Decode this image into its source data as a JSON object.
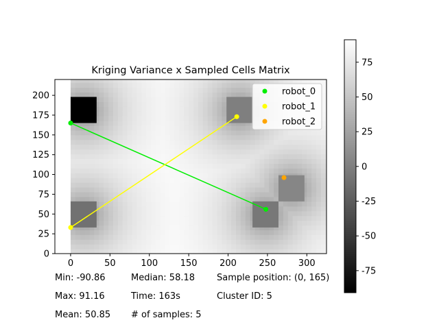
{
  "chart_data": {
    "type": "heatmap",
    "title": "Kriging Variance x Sampled Cells Matrix",
    "xlabel": "",
    "ylabel": "",
    "xlim": [
      -20,
      325
    ],
    "ylim": [
      0,
      220
    ],
    "x_ticks": [
      0,
      50,
      100,
      150,
      200,
      250,
      300
    ],
    "y_ticks": [
      0,
      25,
      50,
      75,
      100,
      125,
      150,
      175,
      200
    ],
    "grid": false,
    "colormap": "gray",
    "colorbar": {
      "range": [
        -90.86,
        91.16
      ],
      "ticks": [
        -75,
        -50,
        -25,
        0,
        25,
        50,
        75
      ]
    },
    "sampled_cells": [
      {
        "x0": 0,
        "x1": 33,
        "y0": 165,
        "y1": 198,
        "value": -90.86
      },
      {
        "x0": 0,
        "x1": 33,
        "y0": 33,
        "y1": 66,
        "value": -10
      },
      {
        "x0": 231,
        "x1": 264,
        "y0": 33,
        "y1": 66,
        "value": -5
      },
      {
        "x0": 198,
        "x1": 231,
        "y0": 165,
        "y1": 198,
        "value": 0
      },
      {
        "x0": 264,
        "x1": 297,
        "y0": 66,
        "y1": 99,
        "value": 5
      }
    ],
    "robots": [
      {
        "name": "robot_0",
        "color": "#00ee00",
        "points": [
          [
            0,
            165
          ],
          [
            248,
            56
          ]
        ]
      },
      {
        "name": "robot_1",
        "color": "#ffff00",
        "points": [
          [
            0,
            33
          ],
          [
            211,
            173
          ]
        ]
      },
      {
        "name": "robot_2",
        "color": "#ffa500",
        "points": [
          [
            271,
            96
          ]
        ]
      }
    ],
    "legend": {
      "placement": "top-right",
      "entries": [
        "robot_0",
        "robot_1",
        "robot_2"
      ]
    }
  },
  "stats": {
    "min": "Min: -90.86",
    "max": "Max: 91.16",
    "mean": "Mean: 50.85",
    "median": "Median: 58.18",
    "time": "Time: 163s",
    "samples": "# of samples: 5",
    "sample_position": "Sample position: (0, 165)",
    "cluster": "Cluster ID: 5"
  }
}
